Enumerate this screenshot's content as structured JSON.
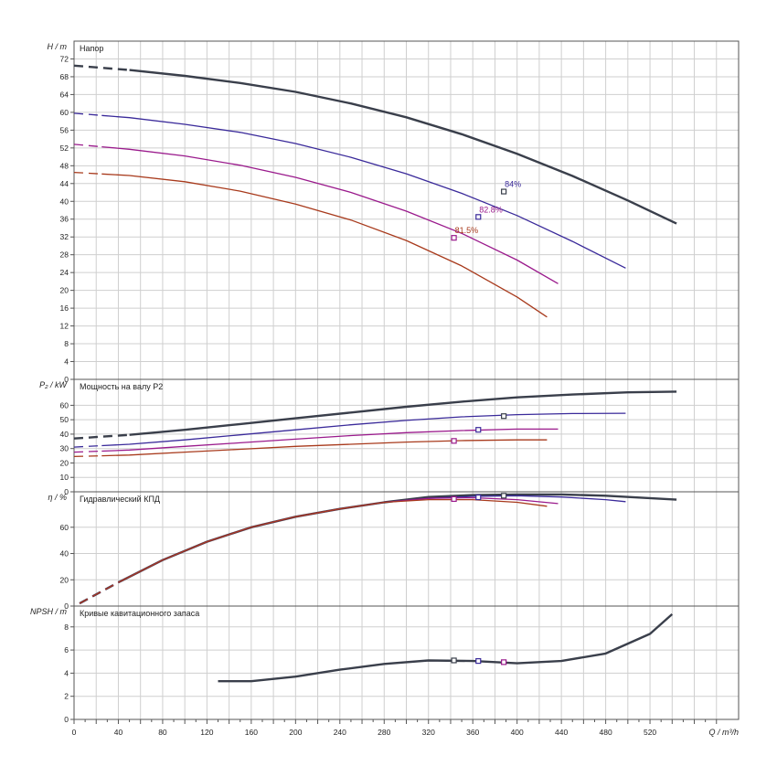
{
  "chart_data": {
    "type": "line",
    "x_axis": {
      "label": "Q / m³/h",
      "min": 0,
      "max": 600,
      "ticks": [
        0,
        40,
        80,
        120,
        160,
        200,
        240,
        280,
        320,
        360,
        400,
        440,
        480,
        520
      ]
    },
    "series_colors": [
      "#3a3f4b",
      "#3a2a9a",
      "#9a1a8c",
      "#a83a1c"
    ],
    "panels": [
      {
        "id": "head",
        "title": "Напор",
        "ylabel": "H / m",
        "ylim": [
          0,
          76
        ],
        "yticks": [
          0,
          4,
          8,
          12,
          16,
          20,
          24,
          28,
          32,
          36,
          40,
          44,
          48,
          52,
          56,
          60,
          64,
          68,
          72
        ],
        "series": [
          {
            "x": [
              0,
              50,
              100,
              150,
              200,
              250,
              300,
              350,
              400,
              450,
              500,
              544
            ],
            "y": [
              70.5,
              69.5,
              68.2,
              66.6,
              64.6,
              62.0,
              58.9,
              55.1,
              50.7,
              45.7,
              40.2,
              35.0
            ],
            "dashed_until": 50
          },
          {
            "x": [
              0,
              50,
              100,
              150,
              200,
              250,
              300,
              350,
              400,
              450,
              498
            ],
            "y": [
              59.8,
              58.8,
              57.3,
              55.5,
              53.0,
              49.9,
              46.2,
              41.8,
              36.8,
              31.0,
              25.0
            ],
            "dashed_until": 25
          },
          {
            "x": [
              0,
              50,
              100,
              150,
              200,
              250,
              300,
              350,
              400,
              437
            ],
            "y": [
              52.8,
              51.7,
              50.2,
              48.1,
              45.4,
              42.0,
              37.8,
              32.8,
              26.8,
              21.5
            ],
            "dashed_until": 25
          },
          {
            "x": [
              0,
              50,
              100,
              150,
              200,
              250,
              300,
              350,
              400,
              427
            ],
            "y": [
              46.5,
              45.8,
              44.4,
              42.3,
              39.4,
              35.8,
              31.2,
              25.5,
              18.5,
              14.0
            ],
            "dashed_until": 25
          }
        ],
        "markers": [
          {
            "series": 0,
            "x": 388,
            "y": 42.2,
            "label": "84%"
          },
          {
            "series": 1,
            "x": 365,
            "y": 36.5,
            "label": "82.8%"
          },
          {
            "series": 2,
            "x": 343,
            "y": 31.8,
            "label": "81.5%"
          }
        ]
      },
      {
        "id": "power",
        "title": "Мощность на валу P2",
        "ylabel": "P₂ / kW",
        "ylim": [
          0,
          78
        ],
        "yticks": [
          0,
          10,
          20,
          30,
          40,
          50,
          60
        ],
        "series": [
          {
            "x": [
              0,
              50,
              100,
              150,
              200,
              250,
              300,
              350,
              400,
              450,
              500,
              544
            ],
            "y": [
              37,
              39.5,
              43,
              47,
              51,
              55,
              59,
              62.5,
              65.5,
              67.5,
              69,
              69.5
            ],
            "dashed_until": 50
          },
          {
            "x": [
              0,
              50,
              100,
              150,
              200,
              250,
              300,
              350,
              400,
              450,
              498
            ],
            "y": [
              31,
              33,
              36,
              39.5,
              43,
              46.5,
              49.5,
              52,
              53.5,
              54.3,
              54.5
            ],
            "dashed_until": 25
          },
          {
            "x": [
              0,
              50,
              100,
              150,
              200,
              250,
              300,
              350,
              400,
              437
            ],
            "y": [
              27.5,
              29,
              31.5,
              34,
              36.5,
              39,
              41,
              42.5,
              43.5,
              43.5
            ],
            "dashed_until": 25
          },
          {
            "x": [
              0,
              50,
              100,
              150,
              200,
              250,
              300,
              350,
              400,
              427
            ],
            "y": [
              24.5,
              25.5,
              27.5,
              29.5,
              31.5,
              33,
              34.5,
              35.5,
              36,
              36
            ],
            "dashed_until": 25
          }
        ],
        "markers": [
          {
            "series": 0,
            "x": 388,
            "y": 52.5
          },
          {
            "series": 1,
            "x": 365,
            "y": 43.0
          },
          {
            "series": 2,
            "x": 343,
            "y": 35.3
          }
        ]
      },
      {
        "id": "eff",
        "title": "Гидравлический КПД",
        "ylabel": "η / %",
        "ylim": [
          0,
          87
        ],
        "yticks": [
          0,
          20,
          40,
          60
        ],
        "series": [
          {
            "x": [
              5,
              40,
              80,
              120,
              160,
              200,
              240,
              280,
              320,
              360,
              400,
              440,
              480,
              544
            ],
            "y": [
              2,
              18,
              35,
              49,
              60,
              68,
              74,
              79,
              83,
              84.5,
              85,
              85,
              84,
              81
            ],
            "dashed_until": 40
          },
          {
            "x": [
              5,
              40,
              80,
              120,
              160,
              200,
              240,
              280,
              320,
              360,
              400,
              440,
              480,
              498
            ],
            "y": [
              2,
              18,
              35,
              49,
              60,
              68,
              74,
              79,
              82,
              83.5,
              84,
              83,
              81,
              79.5
            ],
            "dashed_until": 40
          },
          {
            "x": [
              5,
              40,
              80,
              120,
              160,
              200,
              240,
              280,
              320,
              360,
              400,
              437
            ],
            "y": [
              2,
              18,
              35,
              49,
              60,
              68,
              74,
              79,
              82,
              82.5,
              81,
              78
            ],
            "dashed_until": 40
          },
          {
            "x": [
              5,
              40,
              80,
              120,
              160,
              200,
              240,
              280,
              320,
              360,
              400,
              427
            ],
            "y": [
              2,
              18,
              35,
              49,
              60,
              68,
              74,
              79,
              81,
              81,
              79,
              76
            ],
            "dashed_until": 40
          }
        ],
        "markers": [
          {
            "series": 0,
            "x": 388,
            "y": 84
          },
          {
            "series": 1,
            "x": 365,
            "y": 82.8
          },
          {
            "series": 2,
            "x": 343,
            "y": 81.5
          }
        ]
      },
      {
        "id": "npsh",
        "title": "Кривые кавитационного запаса",
        "ylabel": "NPSH / m",
        "ylim": [
          0,
          9.8
        ],
        "yticks": [
          0,
          2,
          4,
          6,
          8
        ],
        "series": [
          {
            "x": [
              130,
              160,
              200,
              240,
              280,
              320,
              360,
              400,
              440,
              480,
              520,
              540
            ],
            "y": [
              3.3,
              3.3,
              3.7,
              4.3,
              4.8,
              5.1,
              5.05,
              4.85,
              5.05,
              5.7,
              7.4,
              9.1
            ]
          }
        ],
        "markers": [
          {
            "series": 0,
            "x": 343,
            "y": 5.1
          },
          {
            "series": 0,
            "x": 365,
            "y": 5.05
          },
          {
            "series": 0,
            "x": 388,
            "y": 4.95
          }
        ]
      }
    ]
  }
}
